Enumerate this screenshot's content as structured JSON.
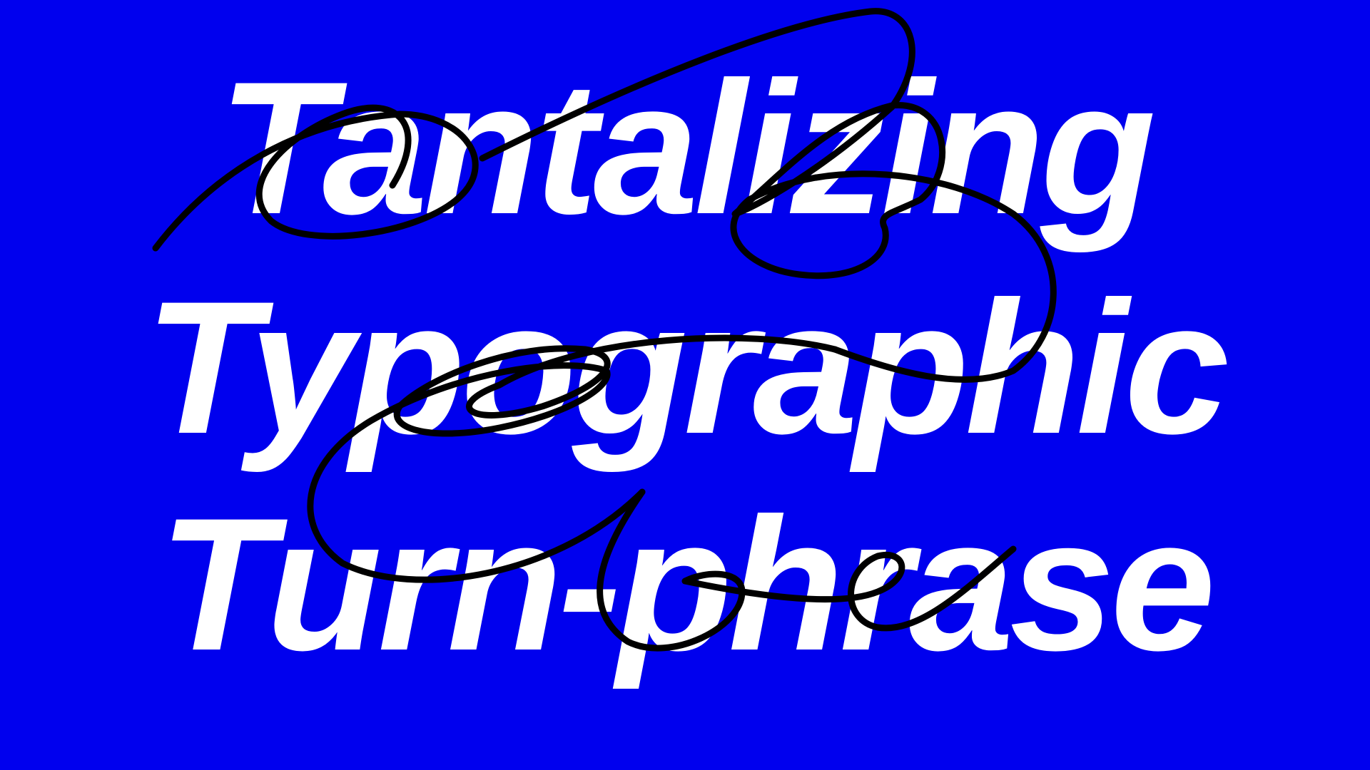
{
  "colors": {
    "background": "#0000ee",
    "text": "#ffffff",
    "scribble": "#000000"
  },
  "headline": {
    "lines": [
      "Tantalizing",
      "Typographic",
      "Turn-phrase"
    ]
  },
  "decoration": {
    "scribble": "hand-drawn-black-loop-line"
  }
}
